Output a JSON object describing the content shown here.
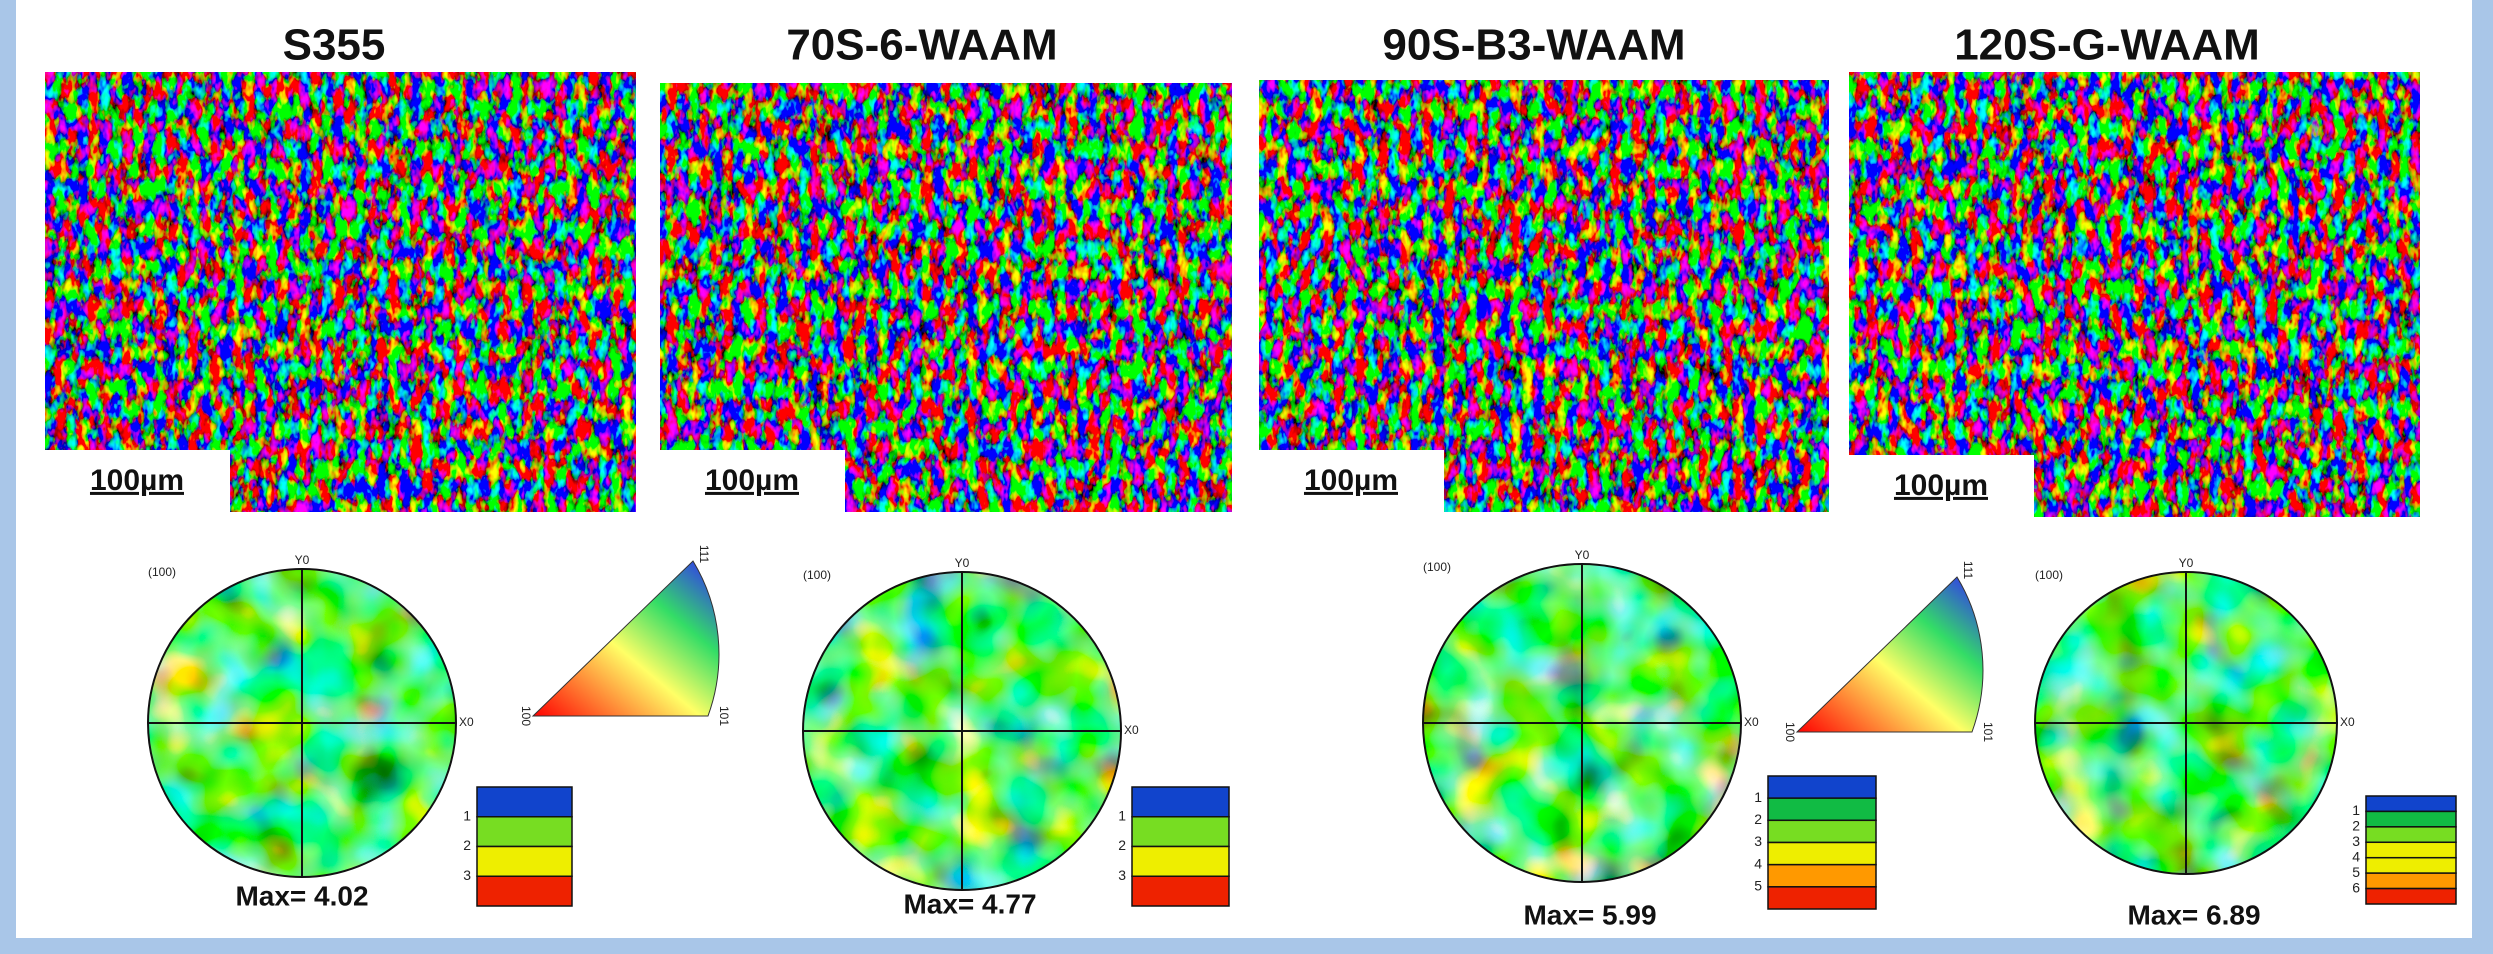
{
  "panels": [
    {
      "title": "S355",
      "scale_bar": "100µm",
      "pole_figure": {
        "label": "(100)",
        "y_axis": "Y0",
        "x_axis": "X0",
        "max": "Max= 4.02",
        "legend": [
          "1",
          "2",
          "3"
        ]
      },
      "ipf_triangle": {
        "corner_100": "100",
        "corner_111": "111",
        "corner_101": "101"
      }
    },
    {
      "title": "70S-6-WAAM",
      "scale_bar": "100µm",
      "pole_figure": {
        "label": "(100)",
        "y_axis": "Y0",
        "x_axis": "X0",
        "max": "Max= 4.77",
        "legend": [
          "1",
          "2",
          "3"
        ]
      }
    },
    {
      "title": "90S-B3-WAAM",
      "scale_bar": "100µm",
      "pole_figure": {
        "label": "(100)",
        "y_axis": "Y0",
        "x_axis": "X0",
        "max": "Max= 5.99",
        "legend": [
          "1",
          "2",
          "3",
          "4",
          "5"
        ]
      },
      "ipf_triangle": {
        "corner_100": "100",
        "corner_111": "111",
        "corner_101": "101"
      }
    },
    {
      "title": "120S-G-WAAM",
      "scale_bar": "100µm",
      "pole_figure": {
        "label": "(100)",
        "y_axis": "Y0",
        "x_axis": "X0",
        "max": "Max= 6.89",
        "legend": [
          "1",
          "2",
          "3",
          "4",
          "5",
          "6"
        ]
      }
    }
  ]
}
